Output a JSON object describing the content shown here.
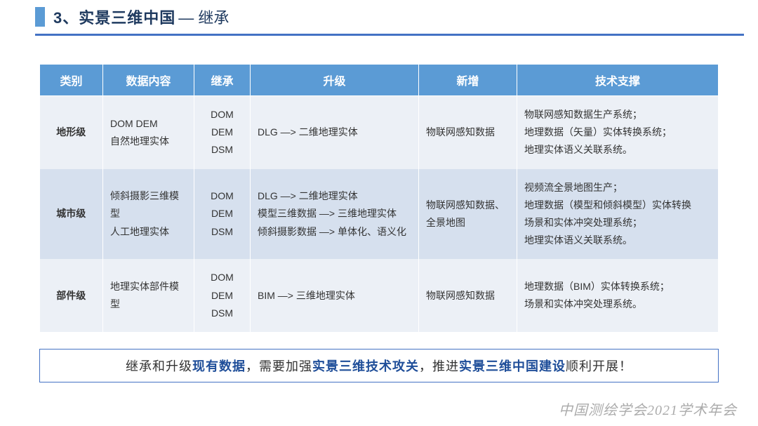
{
  "header": {
    "number": "3、",
    "title_main": "实景三维中国",
    "title_sub": "— 继承"
  },
  "table": {
    "columns": [
      "类别",
      "数据内容",
      "继承",
      "升级",
      "新增",
      "技术支撑"
    ],
    "rows": [
      {
        "category": "地形级",
        "content": "DOM  DEM\n自然地理实体",
        "inherit": "DOM\nDEM\nDSM",
        "upgrade": "DLG —> 二维地理实体",
        "added": "物联网感知数据",
        "tech": "物联网感知数据生产系统；\n地理数据（矢量）实体转换系统；\n地理实体语义关联系统。"
      },
      {
        "category": "城市级",
        "content": "倾斜摄影三维模型\n人工地理实体",
        "inherit": "DOM\nDEM\nDSM",
        "upgrade": "DLG —> 二维地理实体\n模型三维数据 —> 三维地理实体\n倾斜摄影数据 —> 单体化、语义化",
        "added": "物联网感知数据、全景地图",
        "tech": "视频流全景地图生产；\n地理数据（模型和倾斜模型）实体转换\n场景和实体冲突处理系统；\n地理实体语义关联系统。"
      },
      {
        "category": "部件级",
        "content": "地理实体部件模型",
        "inherit": "DOM\nDEM\nDSM",
        "upgrade": "BIM —> 三维地理实体",
        "added": "物联网感知数据",
        "tech": "地理数据（BIM）实体转换系统；\n场景和实体冲突处理系统。"
      }
    ]
  },
  "summary": {
    "p1": "继承和升级",
    "e1": "现有数据",
    "p2": "，需要加强",
    "e2": "实景三维技术攻关",
    "p3": "，推进",
    "e3": "实景三维中国建设",
    "p4": "顺利开展！"
  },
  "watermark": "中国测绘学会2021学术年会"
}
